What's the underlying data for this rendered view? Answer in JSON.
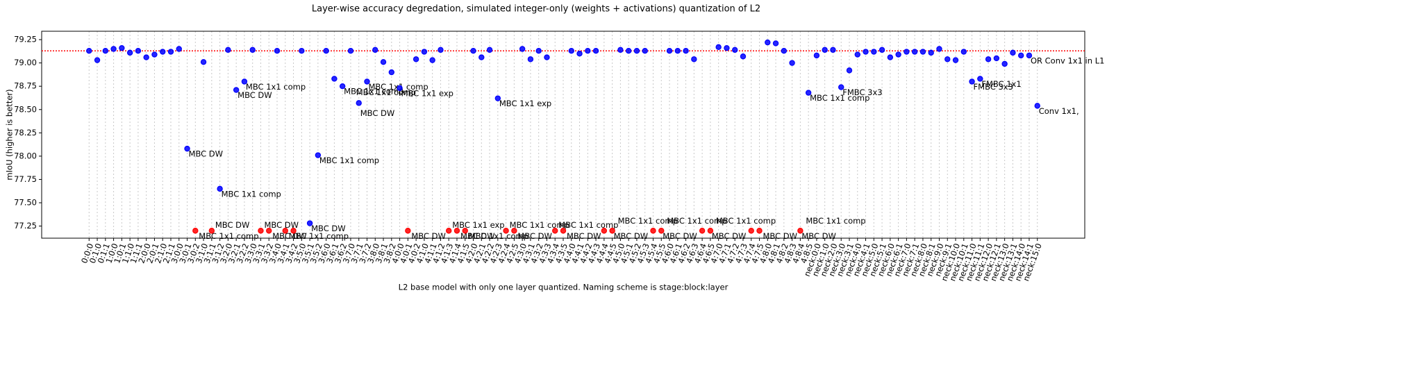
{
  "chart_data": {
    "type": "scatter",
    "title": "Layer-wise accuracy degredation, simulated integer-only (weights + activations) quantization of L2",
    "x_label": "L2 base model with only one layer quantized. Naming scheme is stage:block:layer",
    "y_label": "mIoU (higher is better)",
    "categories": [
      "0:0:0",
      "0:1:0",
      "0:1:1",
      "1:0:0",
      "1:0:1",
      "1:1:0",
      "1:1:1",
      "2:0:0",
      "2:0:1",
      "2:1:0",
      "2:1:1",
      "3:0:0",
      "3:0:1",
      "3:0:2",
      "3:1:0",
      "3:1:1",
      "3:1:2",
      "3:2:0",
      "3:2:1",
      "3:2:2",
      "3:3:0",
      "3:3:1",
      "3:3:2",
      "3:4:0",
      "3:4:1",
      "3:4:2",
      "3:5:0",
      "3:5:1",
      "3:5:2",
      "3:6:0",
      "3:6:1",
      "3:6:2",
      "3:7:0",
      "3:7:1",
      "3:7:2",
      "3:8:0",
      "3:8:1",
      "3:8:2",
      "4:0:0",
      "4:0:1",
      "4:0:2",
      "4:1:0",
      "4:1:1",
      "4:1:2",
      "4:1:3",
      "4:1:4",
      "4:1:5",
      "4:2:0",
      "4:2:1",
      "4:2:2",
      "4:2:3",
      "4:2:4",
      "4:2:5",
      "4:3:0",
      "4:3:1",
      "4:3:2",
      "4:3:3",
      "4:3:4",
      "4:3:5",
      "4:4:0",
      "4:4:1",
      "4:4:2",
      "4:4:3",
      "4:4:4",
      "4:4:5",
      "4:5:0",
      "4:5:1",
      "4:5:2",
      "4:5:3",
      "4:5:4",
      "4:5:5",
      "4:6:0",
      "4:6:1",
      "4:6:2",
      "4:6:3",
      "4:6:4",
      "4:6:5",
      "4:7:0",
      "4:7:1",
      "4:7:2",
      "4:7:3",
      "4:7:4",
      "4:7:5",
      "4:8:0",
      "4:8:1",
      "4:8:2",
      "4:8:3",
      "4:8:4",
      "4:8:5",
      "neck:0:0",
      "neck:1:0",
      "neck:2:0",
      "neck:3:0",
      "neck:3:1",
      "neck:4:0",
      "neck:4:1",
      "neck:5:0",
      "neck:5:1",
      "neck:6:0",
      "neck:6:1",
      "neck:7:0",
      "neck:7:1",
      "neck:8:0",
      "neck:8:1",
      "neck:9:0",
      "neck:9:1",
      "neck:10:0",
      "neck:10:1",
      "neck:11:0",
      "neck:11:1",
      "neck:12:0",
      "neck:12:1",
      "neck:13:0",
      "neck:13:1",
      "neck:14:0",
      "neck:14:1",
      "neck:15:0"
    ],
    "values": [
      79.13,
      79.03,
      79.13,
      79.15,
      79.16,
      79.11,
      79.13,
      79.06,
      79.09,
      79.12,
      79.12,
      79.15,
      78.08,
      77.2,
      79.01,
      77.2,
      77.65,
      79.14,
      78.71,
      78.8,
      79.14,
      77.2,
      77.2,
      79.13,
      77.2,
      77.2,
      79.13,
      77.28,
      78.01,
      79.13,
      78.83,
      78.75,
      79.13,
      78.57,
      78.8,
      79.14,
      79.01,
      78.9,
      78.73,
      77.2,
      79.04,
      79.12,
      79.03,
      79.14,
      77.2,
      77.2,
      77.2,
      79.13,
      79.06,
      79.14,
      78.62,
      77.2,
      77.2,
      79.15,
      79.04,
      79.13,
      79.06,
      77.2,
      77.2,
      79.13,
      79.1,
      79.13,
      79.13,
      77.2,
      77.2,
      79.14,
      79.13,
      79.13,
      79.13,
      77.2,
      77.2,
      79.13,
      79.13,
      79.13,
      79.04,
      77.2,
      77.2,
      79.17,
      79.16,
      79.14,
      79.07,
      77.2,
      77.2,
      79.22,
      79.21,
      79.13,
      79.0,
      77.2,
      78.68,
      79.08,
      79.14,
      79.14,
      78.74,
      78.92,
      79.09,
      79.12,
      79.12,
      79.14,
      79.06,
      79.09,
      79.12,
      79.12,
      79.12,
      79.11,
      79.15,
      79.04,
      79.03,
      79.12,
      78.8,
      78.83,
      79.04,
      79.05,
      78.99,
      79.11,
      79.08,
      79.08,
      78.54
    ],
    "point_colors": [
      "blue",
      "blue",
      "blue",
      "blue",
      "blue",
      "blue",
      "blue",
      "blue",
      "blue",
      "blue",
      "blue",
      "blue",
      "blue",
      "red",
      "blue",
      "red",
      "blue",
      "blue",
      "blue",
      "blue",
      "blue",
      "red",
      "red",
      "blue",
      "red",
      "red",
      "blue",
      "blue",
      "blue",
      "blue",
      "blue",
      "blue",
      "blue",
      "blue",
      "blue",
      "blue",
      "blue",
      "blue",
      "blue",
      "red",
      "blue",
      "blue",
      "blue",
      "blue",
      "red",
      "red",
      "red",
      "blue",
      "blue",
      "blue",
      "blue",
      "red",
      "red",
      "blue",
      "blue",
      "blue",
      "blue",
      "red",
      "red",
      "blue",
      "blue",
      "blue",
      "blue",
      "red",
      "red",
      "blue",
      "blue",
      "blue",
      "blue",
      "red",
      "red",
      "blue",
      "blue",
      "blue",
      "blue",
      "red",
      "red",
      "blue",
      "blue",
      "blue",
      "blue",
      "red",
      "red",
      "blue",
      "blue",
      "blue",
      "blue",
      "red",
      "blue",
      "blue",
      "blue",
      "blue",
      "blue",
      "blue",
      "blue",
      "blue",
      "blue",
      "blue",
      "blue",
      "blue",
      "blue",
      "blue",
      "blue",
      "blue",
      "blue",
      "blue",
      "blue",
      "blue",
      "blue",
      "blue",
      "blue",
      "blue",
      "blue",
      "blue",
      "blue",
      "blue",
      "blue"
    ],
    "point_labels": [
      null,
      null,
      null,
      null,
      null,
      null,
      null,
      null,
      null,
      null,
      null,
      null,
      "MBC DW",
      "MBC 1x1 comp",
      null,
      "MBC DW",
      "MBC 1x1 comp",
      null,
      "MBC DW",
      "MBC 1x1 comp",
      null,
      "MBC DW",
      "MBC DW",
      null,
      "MBC 1x1 comp",
      null,
      null,
      "MBC DW",
      "MBC 1x1 comp",
      null,
      null,
      "MBC 1x1 comp",
      null,
      [
        "MBC 1x1 comp",
        "MBC DW"
      ],
      "MBC 1x1 comp",
      null,
      null,
      null,
      "MBC 1x1 exp",
      "MBC DW",
      null,
      null,
      null,
      null,
      "MBC 1x1 exp",
      "MBC DW",
      "MBC 1x1 comp",
      null,
      null,
      null,
      "MBC 1x1 exp",
      "MBC 1x1 comp",
      "MBC DW",
      null,
      null,
      null,
      null,
      "MBC 1x1 comp",
      "MBC DW",
      null,
      null,
      null,
      null,
      null,
      [
        "MBC 1x1 comp",
        "MBC DW"
      ],
      null,
      null,
      null,
      null,
      null,
      [
        "MBC 1x1 comp",
        "MBC DW"
      ],
      null,
      null,
      null,
      null,
      null,
      [
        "MBC 1x1 comp",
        "MBC DW"
      ],
      null,
      null,
      null,
      null,
      null,
      "MBC DW",
      null,
      null,
      null,
      null,
      [
        "MBC 1x1 comp",
        "MBC DW"
      ],
      "MBC 1x1 comp",
      null,
      null,
      null,
      "FMBC 3x3",
      null,
      null,
      null,
      null,
      null,
      null,
      null,
      null,
      null,
      null,
      null,
      null,
      null,
      null,
      null,
      "FMBC 3x3",
      "FMBC 1x1",
      null,
      null,
      null,
      null,
      null,
      "OR Conv 1x1 in L1",
      "Conv 1x1,"
    ],
    "reference_line": 79.13,
    "reference_color": "red",
    "ylim": [
      77.12,
      79.34
    ],
    "yticks": [
      77.25,
      {
        "value": 77.5,
        "label": "77.50"
      },
      77.75,
      {
        "value": 78,
        "label": "78.00"
      },
      78.25,
      {
        "value": 78.5,
        "label": "78.50"
      },
      78.75,
      {
        "value": 79,
        "label": "79.00"
      },
      79.25
    ],
    "x_grid": true
  }
}
